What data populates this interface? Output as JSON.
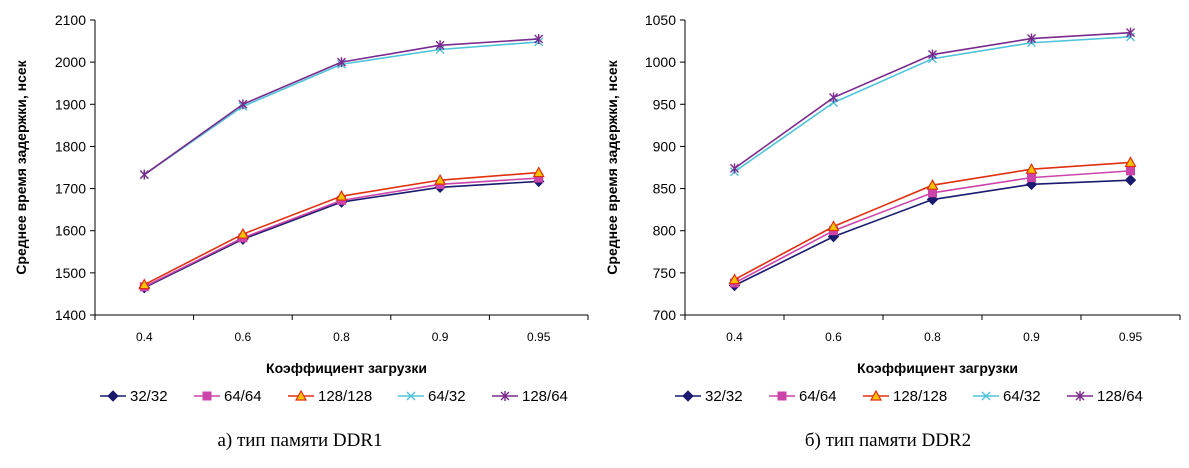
{
  "chart_data": [
    {
      "type": "line",
      "caption": "а) тип памяти DDR1",
      "xlabel": "Коэффициент загрузки",
      "ylabel": "Среднее время задержки, нсек",
      "categories": [
        "0.4",
        "0.6",
        "0.8",
        "0.9",
        "0.95"
      ],
      "ylim": [
        1400,
        2100
      ],
      "yticks": [
        1400,
        1500,
        1600,
        1700,
        1800,
        1900,
        2000,
        2100
      ],
      "grid": false,
      "legend": "bottom",
      "series": [
        {
          "name": "32/32",
          "color": "#1a1a6e",
          "marker": "diamond",
          "values": [
            1465,
            1580,
            1668,
            1703,
            1717
          ]
        },
        {
          "name": "64/64",
          "color": "#cc44aa",
          "marker": "square",
          "values": [
            1467,
            1583,
            1672,
            1710,
            1725
          ]
        },
        {
          "name": "128/128",
          "color": "#e03010",
          "marker": "triangle",
          "values": [
            1472,
            1592,
            1682,
            1720,
            1738
          ]
        },
        {
          "name": "64/32",
          "color": "#4fc3d9",
          "marker": "x",
          "values": [
            1733,
            1895,
            1995,
            2030,
            2048
          ]
        },
        {
          "name": "128/64",
          "color": "#7a2a8c",
          "marker": "star",
          "values": [
            1733,
            1900,
            2000,
            2040,
            2055
          ]
        }
      ]
    },
    {
      "type": "line",
      "caption": "б) тип памяти DDR2",
      "xlabel": "Коэффициент загрузки",
      "ylabel": "Среднее время задержки, нсек",
      "categories": [
        "0.4",
        "0.6",
        "0.8",
        "0.9",
        "0.95"
      ],
      "ylim": [
        700,
        1050
      ],
      "yticks": [
        700,
        750,
        800,
        850,
        900,
        950,
        1000,
        1050
      ],
      "grid": false,
      "legend": "bottom",
      "series": [
        {
          "name": "32/32",
          "color": "#1a1a6e",
          "marker": "diamond",
          "values": [
            735,
            793,
            837,
            855,
            860
          ]
        },
        {
          "name": "64/64",
          "color": "#cc44aa",
          "marker": "square",
          "values": [
            738,
            800,
            845,
            863,
            871
          ]
        },
        {
          "name": "128/128",
          "color": "#e03010",
          "marker": "triangle",
          "values": [
            742,
            805,
            854,
            873,
            881
          ]
        },
        {
          "name": "64/32",
          "color": "#4fc3d9",
          "marker": "x",
          "values": [
            870,
            952,
            1004,
            1023,
            1030
          ]
        },
        {
          "name": "128/64",
          "color": "#7a2a8c",
          "marker": "star",
          "values": [
            874,
            958,
            1009,
            1028,
            1035
          ]
        }
      ]
    }
  ]
}
